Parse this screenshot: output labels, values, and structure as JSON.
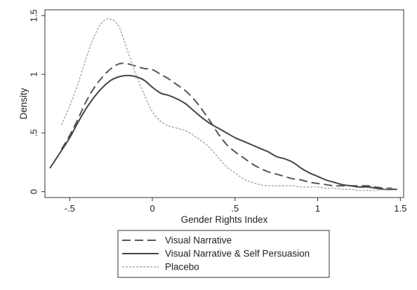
{
  "chart_data": {
    "type": "line",
    "title": "",
    "xlabel": "Gender Rights Index",
    "ylabel": "Density",
    "xlim": [
      -0.65,
      1.52
    ],
    "ylim": [
      -0.05,
      1.55
    ],
    "xticks": [
      -0.5,
      0,
      0.5,
      1,
      1.5
    ],
    "xtick_labels": [
      "-.5",
      "0",
      ".5",
      "1",
      "1.5"
    ],
    "yticks": [
      0,
      0.5,
      1,
      1.5
    ],
    "ytick_labels": [
      "0",
      ".5",
      "1",
      "1.5"
    ],
    "grid": false,
    "legend_position": "bottom",
    "series": [
      {
        "name": "Visual Narrative",
        "style": "long-dash",
        "color": "#555555",
        "x": [
          -0.55,
          -0.5,
          -0.45,
          -0.4,
          -0.35,
          -0.3,
          -0.25,
          -0.2,
          -0.15,
          -0.1,
          -0.05,
          0,
          0.05,
          0.1,
          0.15,
          0.2,
          0.25,
          0.3,
          0.35,
          0.4,
          0.45,
          0.5,
          0.55,
          0.6,
          0.65,
          0.7,
          0.75,
          0.8,
          0.85,
          0.9,
          0.95,
          1.0,
          1.05,
          1.1,
          1.15,
          1.2,
          1.25,
          1.3,
          1.35,
          1.4,
          1.45
        ],
        "y": [
          0.36,
          0.48,
          0.62,
          0.77,
          0.89,
          0.98,
          1.05,
          1.09,
          1.09,
          1.07,
          1.05,
          1.04,
          1.0,
          0.96,
          0.91,
          0.86,
          0.79,
          0.7,
          0.6,
          0.49,
          0.4,
          0.34,
          0.29,
          0.24,
          0.2,
          0.17,
          0.15,
          0.13,
          0.11,
          0.1,
          0.08,
          0.07,
          0.06,
          0.05,
          0.05,
          0.05,
          0.05,
          0.05,
          0.04,
          0.03,
          0.03
        ]
      },
      {
        "name": "Visual Narrative & Self Persuasion",
        "style": "solid",
        "color": "#444444",
        "x": [
          -0.62,
          -0.55,
          -0.5,
          -0.45,
          -0.4,
          -0.35,
          -0.3,
          -0.25,
          -0.2,
          -0.15,
          -0.1,
          -0.05,
          0,
          0.05,
          0.1,
          0.15,
          0.2,
          0.25,
          0.3,
          0.35,
          0.4,
          0.45,
          0.5,
          0.55,
          0.6,
          0.65,
          0.7,
          0.75,
          0.8,
          0.85,
          0.9,
          0.95,
          1.0,
          1.05,
          1.1,
          1.15,
          1.2,
          1.25,
          1.3,
          1.35,
          1.4,
          1.45,
          1.48
        ],
        "y": [
          0.2,
          0.35,
          0.46,
          0.59,
          0.71,
          0.81,
          0.89,
          0.95,
          0.98,
          0.99,
          0.98,
          0.95,
          0.89,
          0.84,
          0.82,
          0.79,
          0.75,
          0.69,
          0.63,
          0.58,
          0.54,
          0.5,
          0.46,
          0.43,
          0.4,
          0.37,
          0.34,
          0.3,
          0.28,
          0.25,
          0.2,
          0.16,
          0.13,
          0.1,
          0.08,
          0.06,
          0.05,
          0.04,
          0.04,
          0.03,
          0.02,
          0.02,
          0.02
        ]
      },
      {
        "name": "Placebo",
        "style": "dotted",
        "color": "#999999",
        "x": [
          -0.55,
          -0.5,
          -0.45,
          -0.4,
          -0.35,
          -0.3,
          -0.25,
          -0.2,
          -0.15,
          -0.1,
          -0.05,
          0,
          0.05,
          0.1,
          0.15,
          0.2,
          0.25,
          0.3,
          0.35,
          0.4,
          0.45,
          0.5,
          0.55,
          0.6,
          0.65,
          0.7,
          0.75,
          0.8,
          0.85,
          0.9,
          0.95,
          1.0,
          1.05,
          1.1,
          1.15,
          1.2,
          1.25,
          1.3,
          1.35,
          1.4,
          1.45
        ],
        "y": [
          0.57,
          0.73,
          0.92,
          1.14,
          1.33,
          1.45,
          1.47,
          1.4,
          1.2,
          1.0,
          0.83,
          0.68,
          0.6,
          0.56,
          0.54,
          0.52,
          0.48,
          0.43,
          0.37,
          0.29,
          0.21,
          0.16,
          0.11,
          0.08,
          0.06,
          0.05,
          0.05,
          0.05,
          0.05,
          0.04,
          0.04,
          0.04,
          0.03,
          0.03,
          0.02,
          0.02,
          0.01,
          0.01,
          0.01,
          0.02,
          0.03
        ]
      }
    ]
  }
}
